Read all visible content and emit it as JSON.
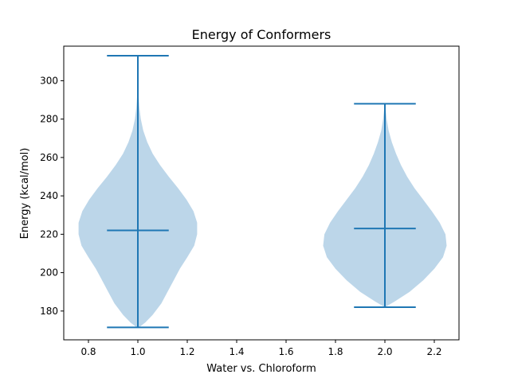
{
  "chart_data": {
    "type": "violin",
    "title": "Energy of Conformers",
    "xlabel": "Water vs. Chloroform",
    "ylabel": "Energy (kcal/mol)",
    "xlim": [
      0.7,
      2.3
    ],
    "ylim": [
      165,
      318
    ],
    "xticks": [
      0.8,
      1.0,
      1.2,
      1.4,
      1.6,
      1.8,
      2.0,
      2.2
    ],
    "xtick_labels": [
      "0.8",
      "1.0",
      "1.2",
      "1.4",
      "1.6",
      "1.8",
      "2.0",
      "2.2"
    ],
    "yticks": [
      180,
      200,
      220,
      240,
      260,
      280,
      300
    ],
    "ytick_labels": [
      "180",
      "200",
      "220",
      "240",
      "260",
      "280",
      "300"
    ],
    "grid": false,
    "colors": {
      "body": "#a6c8e2",
      "lines": "#1f77b4"
    },
    "violins": [
      {
        "position": 1.0,
        "min": 171.5,
        "max": 313,
        "mean": 222,
        "density": [
          [
            171,
            0.0
          ],
          [
            174,
            0.03
          ],
          [
            178,
            0.06
          ],
          [
            184,
            0.095
          ],
          [
            190,
            0.12
          ],
          [
            196,
            0.145
          ],
          [
            202,
            0.17
          ],
          [
            208,
            0.2
          ],
          [
            214,
            0.228
          ],
          [
            220,
            0.24
          ],
          [
            226,
            0.24
          ],
          [
            232,
            0.225
          ],
          [
            238,
            0.197
          ],
          [
            244,
            0.163
          ],
          [
            250,
            0.125
          ],
          [
            256,
            0.09
          ],
          [
            262,
            0.06
          ],
          [
            268,
            0.038
          ],
          [
            274,
            0.022
          ],
          [
            280,
            0.012
          ],
          [
            286,
            0.006
          ],
          [
            292,
            0.003
          ],
          [
            300,
            0.003
          ],
          [
            307,
            0.003
          ],
          [
            313,
            0.0
          ]
        ]
      },
      {
        "position": 2.0,
        "min": 182,
        "max": 288,
        "mean": 223,
        "density": [
          [
            182,
            0.0
          ],
          [
            185,
            0.04
          ],
          [
            190,
            0.1
          ],
          [
            196,
            0.155
          ],
          [
            202,
            0.2
          ],
          [
            208,
            0.235
          ],
          [
            214,
            0.25
          ],
          [
            220,
            0.245
          ],
          [
            226,
            0.222
          ],
          [
            232,
            0.19
          ],
          [
            238,
            0.155
          ],
          [
            244,
            0.12
          ],
          [
            250,
            0.09
          ],
          [
            256,
            0.065
          ],
          [
            262,
            0.045
          ],
          [
            268,
            0.028
          ],
          [
            274,
            0.015
          ],
          [
            280,
            0.007
          ],
          [
            284,
            0.004
          ],
          [
            288,
            0.0
          ]
        ]
      }
    ]
  }
}
